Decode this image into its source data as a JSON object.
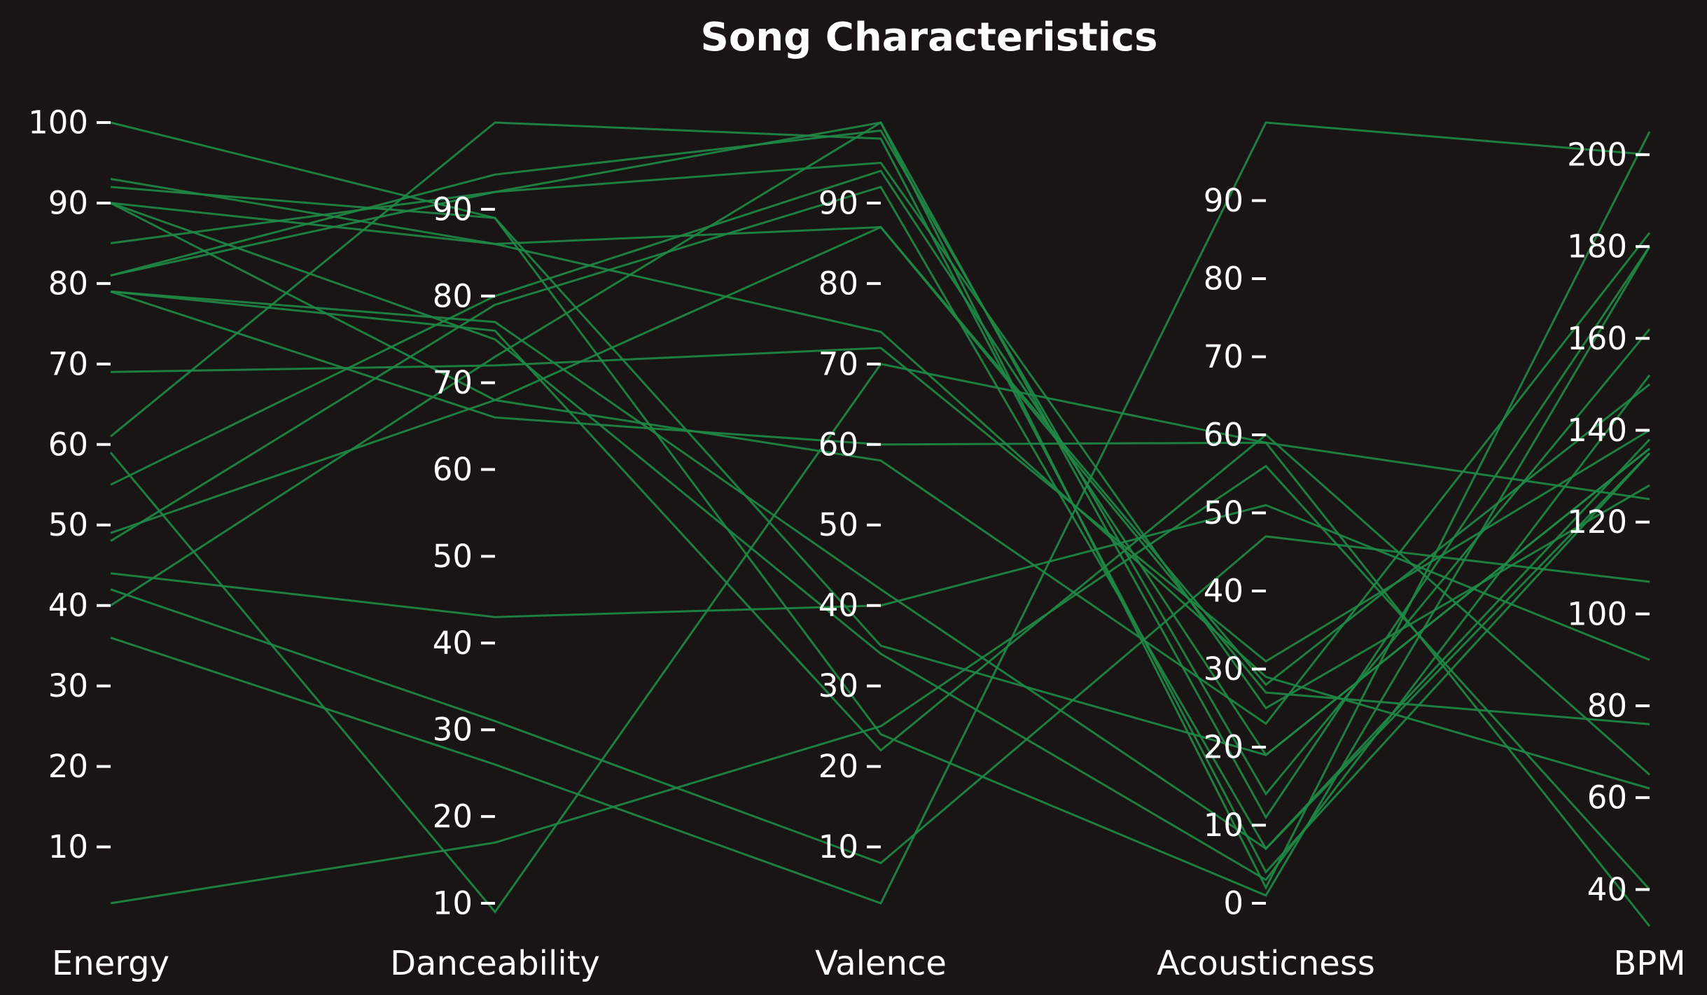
{
  "chart_data": {
    "type": "parallel_coordinates",
    "title": "Song Characteristics",
    "colors": {
      "background": "#191514",
      "line": "#1f8a47",
      "text": "#ffffff"
    },
    "axes": [
      {
        "name": "Energy",
        "min": 3,
        "max": 100,
        "ticks": [
          10,
          20,
          30,
          40,
          50,
          60,
          70,
          80,
          90,
          100
        ]
      },
      {
        "name": "Danceability",
        "min": 10,
        "max": 100,
        "ticks": [
          10,
          20,
          30,
          40,
          50,
          60,
          70,
          80,
          90
        ]
      },
      {
        "name": "Valence",
        "min": 3,
        "max": 100,
        "ticks": [
          10,
          20,
          30,
          40,
          50,
          60,
          70,
          80,
          90
        ]
      },
      {
        "name": "Acousticness",
        "min": 0,
        "max": 100,
        "ticks": [
          0,
          10,
          20,
          30,
          40,
          50,
          60,
          70,
          80,
          90
        ]
      },
      {
        "name": "BPM",
        "min": 37,
        "max": 207,
        "ticks": [
          40,
          60,
          80,
          100,
          120,
          140,
          160,
          180,
          200
        ]
      }
    ],
    "series": [
      {
        "values": [
          100,
          89,
          24,
          1,
          180
        ]
      },
      {
        "values": [
          93,
          86,
          87,
          27,
          76
        ]
      },
      {
        "values": [
          92,
          89,
          35,
          19,
          136
        ]
      },
      {
        "values": [
          90,
          86,
          74,
          29,
          62
        ]
      },
      {
        "values": [
          90,
          75,
          34,
          3,
          152
        ]
      },
      {
        "values": [
          90,
          68,
          58,
          23,
          183
        ]
      },
      {
        "values": [
          85,
          92,
          95,
          25,
          128
        ]
      },
      {
        "values": [
          81,
          94,
          99,
          14,
          162
        ]
      },
      {
        "values": [
          81,
          92,
          100,
          11,
          180
        ]
      },
      {
        "values": [
          79,
          77,
          42,
          7,
          138
        ]
      },
      {
        "values": [
          79,
          76,
          22,
          60,
          65
        ]
      },
      {
        "values": [
          79,
          66,
          60,
          59,
          32
        ]
      },
      {
        "values": [
          69,
          72,
          72,
          31,
          140
        ]
      },
      {
        "values": [
          61,
          100,
          98,
          4,
          135
        ]
      },
      {
        "values": [
          59,
          9,
          70,
          59,
          125
        ]
      },
      {
        "values": [
          55,
          80,
          94,
          19,
          136
        ]
      },
      {
        "values": [
          49,
          68,
          87,
          28,
          150
        ]
      },
      {
        "values": [
          48,
          79,
          92,
          7,
          135
        ]
      },
      {
        "values": [
          44,
          43,
          40,
          51,
          90
        ]
      },
      {
        "values": [
          42,
          31,
          8,
          47,
          107
        ]
      },
      {
        "values": [
          40,
          73,
          100,
          2,
          205
        ]
      },
      {
        "values": [
          36,
          26,
          3,
          100,
          200
        ]
      },
      {
        "values": [
          3,
          17,
          25,
          56,
          40
        ]
      }
    ]
  }
}
